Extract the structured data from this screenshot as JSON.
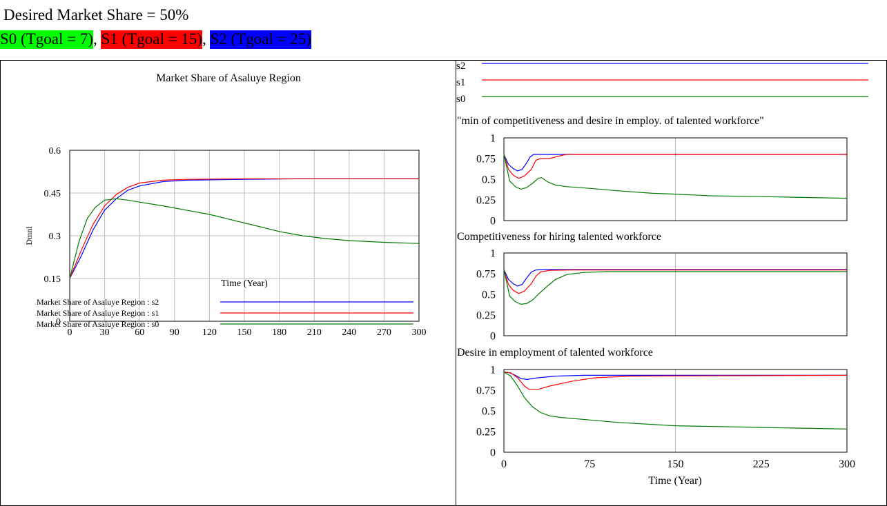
{
  "header": {
    "line1": "Desired Market Share = 50%",
    "scenarios": [
      {
        "label": "S0 (Tgoal = 7)",
        "color": "#00ff00"
      },
      {
        "label": "S1 (Tgoal = 15)",
        "color": "#ff0000"
      },
      {
        "label": "S2 (Tgoal = 25)",
        "color": "#0000ff"
      }
    ],
    "separator": ", "
  },
  "colors": {
    "s0": "#007a00",
    "s1": "#ff0000",
    "s2": "#0000ff"
  },
  "chart_data": [
    {
      "type": "line",
      "title": "Market Share of Asaluye Region",
      "xlabel": "Time (Year)",
      "ylabel": "Dmnl",
      "xlim": [
        0,
        300
      ],
      "ylim": [
        0,
        0.6
      ],
      "x_ticks": [
        "0",
        "30",
        "60",
        "90",
        "120",
        "150",
        "180",
        "210",
        "240",
        "270",
        "300"
      ],
      "y_ticks": [
        "0",
        "0.15",
        "0.3",
        "0.45",
        "0.6"
      ],
      "grid": true,
      "legend": "bottom",
      "series": [
        {
          "name": "Market Share of Asaluye Region : s2",
          "key": "s2",
          "points": [
            [
              0,
              0.15
            ],
            [
              10,
              0.23
            ],
            [
              20,
              0.32
            ],
            [
              30,
              0.39
            ],
            [
              40,
              0.43
            ],
            [
              50,
              0.46
            ],
            [
              60,
              0.475
            ],
            [
              80,
              0.49
            ],
            [
              100,
              0.495
            ],
            [
              150,
              0.498
            ],
            [
              200,
              0.5
            ],
            [
              300,
              0.5
            ]
          ]
        },
        {
          "name": "Market Share of Asaluye Region : s1",
          "key": "s1",
          "points": [
            [
              0,
              0.15
            ],
            [
              10,
              0.25
            ],
            [
              20,
              0.34
            ],
            [
              30,
              0.405
            ],
            [
              40,
              0.445
            ],
            [
              50,
              0.47
            ],
            [
              60,
              0.485
            ],
            [
              80,
              0.495
            ],
            [
              100,
              0.498
            ],
            [
              150,
              0.5
            ],
            [
              200,
              0.5
            ],
            [
              300,
              0.5
            ]
          ]
        },
        {
          "name": "Market Share of Asaluye Region : s0",
          "key": "s0",
          "points": [
            [
              0,
              0.15
            ],
            [
              8,
              0.28
            ],
            [
              15,
              0.36
            ],
            [
              22,
              0.4
            ],
            [
              30,
              0.425
            ],
            [
              40,
              0.43
            ],
            [
              50,
              0.425
            ],
            [
              60,
              0.418
            ],
            [
              80,
              0.405
            ],
            [
              100,
              0.39
            ],
            [
              120,
              0.375
            ],
            [
              140,
              0.355
            ],
            [
              160,
              0.335
            ],
            [
              180,
              0.315
            ],
            [
              200,
              0.3
            ],
            [
              220,
              0.29
            ],
            [
              240,
              0.283
            ],
            [
              270,
              0.277
            ],
            [
              300,
              0.273
            ]
          ]
        }
      ]
    },
    {
      "type": "line",
      "title": "\"min of competitiveness and desire in employ. of talented workforce\"",
      "xlim": [
        0,
        300
      ],
      "ylim": [
        0,
        1
      ],
      "y_ticks": [
        "0",
        "0.25",
        "0.5",
        "0.75",
        "1"
      ],
      "grid": true,
      "series": [
        {
          "key": "s2",
          "points": [
            [
              0,
              0.8
            ],
            [
              4,
              0.68
            ],
            [
              8,
              0.63
            ],
            [
              12,
              0.6
            ],
            [
              16,
              0.62
            ],
            [
              20,
              0.7
            ],
            [
              23,
              0.77
            ],
            [
              26,
              0.8
            ],
            [
              300,
              0.8
            ]
          ]
        },
        {
          "key": "s1",
          "points": [
            [
              0,
              0.8
            ],
            [
              4,
              0.62
            ],
            [
              8,
              0.55
            ],
            [
              13,
              0.51
            ],
            [
              18,
              0.54
            ],
            [
              24,
              0.62
            ],
            [
              28,
              0.73
            ],
            [
              32,
              0.75
            ],
            [
              40,
              0.75
            ],
            [
              48,
              0.78
            ],
            [
              55,
              0.8
            ],
            [
              300,
              0.8
            ]
          ]
        },
        {
          "key": "s0",
          "points": [
            [
              0,
              0.8
            ],
            [
              5,
              0.48
            ],
            [
              10,
              0.41
            ],
            [
              15,
              0.38
            ],
            [
              20,
              0.4
            ],
            [
              25,
              0.45
            ],
            [
              30,
              0.51
            ],
            [
              33,
              0.52
            ],
            [
              38,
              0.47
            ],
            [
              45,
              0.43
            ],
            [
              55,
              0.41
            ],
            [
              75,
              0.39
            ],
            [
              100,
              0.36
            ],
            [
              130,
              0.33
            ],
            [
              150,
              0.32
            ],
            [
              180,
              0.3
            ],
            [
              225,
              0.29
            ],
            [
              300,
              0.27
            ]
          ]
        }
      ]
    },
    {
      "type": "line",
      "title": "Competitiveness for hiring talented workforce",
      "xlim": [
        0,
        300
      ],
      "ylim": [
        0,
        1
      ],
      "y_ticks": [
        "0",
        "0.25",
        "0.5",
        "0.75",
        "1"
      ],
      "grid": true,
      "series": [
        {
          "key": "s2",
          "points": [
            [
              0,
              0.8
            ],
            [
              4,
              0.68
            ],
            [
              8,
              0.63
            ],
            [
              12,
              0.6
            ],
            [
              16,
              0.62
            ],
            [
              20,
              0.7
            ],
            [
              24,
              0.77
            ],
            [
              28,
              0.795
            ],
            [
              35,
              0.8
            ],
            [
              300,
              0.8
            ]
          ]
        },
        {
          "key": "s1",
          "points": [
            [
              0,
              0.8
            ],
            [
              4,
              0.62
            ],
            [
              8,
              0.55
            ],
            [
              13,
              0.51
            ],
            [
              18,
              0.54
            ],
            [
              24,
              0.63
            ],
            [
              28,
              0.72
            ],
            [
              32,
              0.77
            ],
            [
              40,
              0.79
            ],
            [
              60,
              0.795
            ],
            [
              300,
              0.795
            ]
          ]
        },
        {
          "key": "s0",
          "points": [
            [
              0,
              0.8
            ],
            [
              5,
              0.48
            ],
            [
              10,
              0.41
            ],
            [
              15,
              0.38
            ],
            [
              20,
              0.39
            ],
            [
              25,
              0.43
            ],
            [
              30,
              0.5
            ],
            [
              38,
              0.6
            ],
            [
              45,
              0.68
            ],
            [
              55,
              0.74
            ],
            [
              70,
              0.765
            ],
            [
              90,
              0.775
            ],
            [
              150,
              0.775
            ],
            [
              300,
              0.775
            ]
          ]
        }
      ]
    },
    {
      "type": "line",
      "title": "Desire in employment of talented workforce",
      "xlabel": "Time (Year)",
      "xlim": [
        0,
        300
      ],
      "ylim": [
        0,
        1
      ],
      "x_ticks": [
        "0",
        "75",
        "150",
        "225",
        "300"
      ],
      "y_ticks": [
        "0",
        "0.25",
        "0.5",
        "0.75",
        "1"
      ],
      "grid": true,
      "series": [
        {
          "key": "s2",
          "points": [
            [
              0,
              0.97
            ],
            [
              5,
              0.96
            ],
            [
              10,
              0.93
            ],
            [
              15,
              0.89
            ],
            [
              20,
              0.88
            ],
            [
              30,
              0.9
            ],
            [
              45,
              0.92
            ],
            [
              70,
              0.93
            ],
            [
              300,
              0.93
            ]
          ]
        },
        {
          "key": "s1",
          "points": [
            [
              0,
              0.97
            ],
            [
              6,
              0.96
            ],
            [
              12,
              0.9
            ],
            [
              18,
              0.8
            ],
            [
              22,
              0.76
            ],
            [
              30,
              0.76
            ],
            [
              40,
              0.8
            ],
            [
              60,
              0.86
            ],
            [
              80,
              0.9
            ],
            [
              110,
              0.92
            ],
            [
              300,
              0.93
            ]
          ]
        },
        {
          "key": "s0",
          "points": [
            [
              0,
              0.97
            ],
            [
              6,
              0.92
            ],
            [
              12,
              0.8
            ],
            [
              18,
              0.66
            ],
            [
              25,
              0.55
            ],
            [
              32,
              0.48
            ],
            [
              40,
              0.44
            ],
            [
              50,
              0.42
            ],
            [
              75,
              0.39
            ],
            [
              100,
              0.36
            ],
            [
              150,
              0.32
            ],
            [
              225,
              0.3
            ],
            [
              300,
              0.28
            ]
          ]
        }
      ]
    }
  ],
  "right_legend": [
    {
      "label": "s2",
      "key": "s2"
    },
    {
      "label": "s1",
      "key": "s1"
    },
    {
      "label": "s0",
      "key": "s0"
    }
  ]
}
